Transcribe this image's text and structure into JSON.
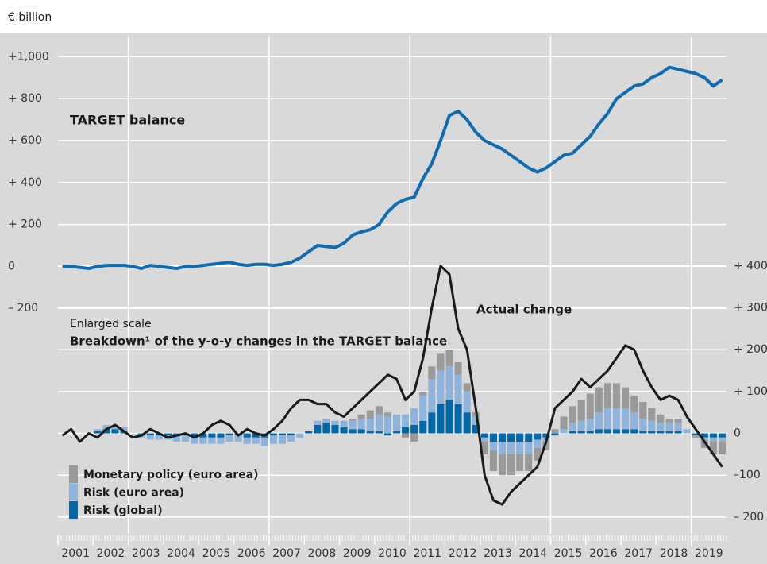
{
  "chart_data": {
    "type": "combo",
    "unit_label": "€ billion",
    "annotations": [
      "Enlarged scale",
      "Breakdown¹ of the y-o-y changes in the TARGET balance"
    ],
    "x": [
      2001.125,
      2001.375,
      2001.625,
      2001.875,
      2002.125,
      2002.375,
      2002.625,
      2002.875,
      2003.125,
      2003.375,
      2003.625,
      2003.875,
      2004.125,
      2004.375,
      2004.625,
      2004.875,
      2005.125,
      2005.375,
      2005.625,
      2005.875,
      2006.125,
      2006.375,
      2006.625,
      2006.875,
      2007.125,
      2007.375,
      2007.625,
      2007.875,
      2008.125,
      2008.375,
      2008.625,
      2008.875,
      2009.125,
      2009.375,
      2009.625,
      2009.875,
      2010.125,
      2010.375,
      2010.625,
      2010.875,
      2011.125,
      2011.375,
      2011.625,
      2011.875,
      2012.125,
      2012.375,
      2012.625,
      2012.875,
      2013.125,
      2013.375,
      2013.625,
      2013.875,
      2014.125,
      2014.375,
      2014.625,
      2014.875,
      2015.125,
      2015.375,
      2015.625,
      2015.875,
      2016.125,
      2016.375,
      2016.625,
      2016.875,
      2017.125,
      2017.375,
      2017.625,
      2017.875,
      2018.125,
      2018.375,
      2018.625,
      2018.875,
      2019.125,
      2019.375,
      2019.625,
      2019.875
    ],
    "xlim": [
      2001,
      2020
    ],
    "xticks": [
      2001,
      2002,
      2003,
      2004,
      2005,
      2006,
      2007,
      2008,
      2009,
      2010,
      2011,
      2012,
      2013,
      2014,
      2015,
      2016,
      2017,
      2018,
      2019
    ],
    "ylim": [
      -1275,
      1100
    ],
    "yticks": [
      {
        "value": 1000,
        "label": "+1,000"
      },
      {
        "value": 800,
        "label": "+ 800"
      },
      {
        "value": 600,
        "label": "+ 600"
      },
      {
        "value": 400,
        "label": "+ 400"
      },
      {
        "value": 200,
        "label": "+ 200"
      },
      0,
      {
        "value": -200,
        "label": "– 200"
      }
    ],
    "y2lim": [
      -240,
      950
    ],
    "y2ticks": [
      {
        "value": 400,
        "label": "+ 400"
      },
      {
        "value": 300,
        "label": "+ 300"
      },
      {
        "value": 200,
        "label": "+ 200"
      },
      {
        "value": 100,
        "label": "+ 100"
      },
      0,
      {
        "value": -100,
        "label": "–100"
      },
      {
        "value": -200,
        "label": "– 200"
      }
    ],
    "grid": true,
    "series": [
      {
        "name": "Monetary policy (euro area)",
        "type": "bar",
        "axis": "y2",
        "color": "#9a9a9a",
        "values": [
          0,
          0,
          0,
          0,
          0,
          0,
          0,
          0,
          0,
          0,
          0,
          0,
          0,
          0,
          0,
          0,
          0,
          0,
          0,
          0,
          0,
          0,
          0,
          0,
          0,
          0,
          0,
          0,
          0,
          0,
          0,
          0,
          0,
          5,
          10,
          20,
          20,
          10,
          0,
          -10,
          -20,
          10,
          30,
          40,
          40,
          30,
          20,
          10,
          -30,
          -50,
          -50,
          -50,
          -40,
          -40,
          -30,
          -20,
          10,
          30,
          40,
          50,
          60,
          60,
          60,
          60,
          50,
          40,
          40,
          30,
          20,
          10,
          10,
          0,
          -5,
          -20,
          -30,
          -30
        ]
      },
      {
        "name": "Risk (euro area)",
        "type": "bar",
        "axis": "y2",
        "color": "#8fb4dc",
        "values": [
          0,
          0,
          0,
          0,
          5,
          10,
          10,
          10,
          0,
          -5,
          -10,
          -10,
          -10,
          -15,
          -15,
          -15,
          -15,
          -15,
          -15,
          -15,
          -15,
          -15,
          -15,
          -20,
          -20,
          -20,
          -15,
          -10,
          0,
          10,
          10,
          10,
          15,
          20,
          25,
          30,
          40,
          40,
          40,
          30,
          40,
          60,
          80,
          80,
          80,
          70,
          50,
          20,
          -10,
          -20,
          -30,
          -30,
          -30,
          -30,
          -20,
          -10,
          0,
          10,
          20,
          25,
          30,
          40,
          50,
          50,
          50,
          40,
          30,
          25,
          20,
          20,
          20,
          10,
          0,
          -5,
          -10,
          -10
        ]
      },
      {
        "name": "Risk (global)",
        "type": "bar",
        "axis": "y2",
        "color": "#0068a8",
        "values": [
          0,
          0,
          0,
          0,
          5,
          10,
          10,
          5,
          0,
          -5,
          -5,
          -5,
          -5,
          -5,
          -5,
          -10,
          -10,
          -10,
          -10,
          -5,
          -5,
          -10,
          -10,
          -10,
          -5,
          -5,
          -5,
          0,
          5,
          20,
          25,
          20,
          15,
          10,
          10,
          5,
          5,
          -5,
          5,
          15,
          20,
          30,
          50,
          70,
          80,
          70,
          50,
          20,
          -10,
          -20,
          -20,
          -20,
          -20,
          -20,
          -15,
          -10,
          -5,
          0,
          5,
          5,
          5,
          10,
          10,
          10,
          10,
          10,
          5,
          5,
          5,
          5,
          5,
          0,
          -5,
          -10,
          -10,
          -10
        ]
      },
      {
        "name": "TARGET balance",
        "type": "line",
        "axis": "y",
        "color": "#0f6cb0",
        "values": [
          0,
          0,
          -5,
          -10,
          0,
          5,
          5,
          5,
          0,
          -10,
          5,
          0,
          -5,
          -10,
          0,
          0,
          5,
          10,
          15,
          20,
          10,
          5,
          10,
          10,
          5,
          10,
          20,
          40,
          70,
          100,
          95,
          90,
          110,
          150,
          165,
          175,
          200,
          260,
          300,
          320,
          330,
          420,
          490,
          600,
          720,
          740,
          700,
          640,
          600,
          580,
          560,
          530,
          500,
          470,
          450,
          470,
          500,
          530,
          540,
          580,
          620,
          680,
          730,
          800,
          830,
          860,
          870,
          900,
          920,
          950,
          940,
          930,
          920,
          900,
          860,
          890
        ]
      },
      {
        "name": "Actual change",
        "type": "line",
        "axis": "y2",
        "color": "#1a1a1a",
        "values": [
          -5,
          10,
          -20,
          0,
          -10,
          10,
          20,
          5,
          -10,
          -5,
          10,
          0,
          -10,
          -5,
          0,
          -10,
          0,
          20,
          30,
          20,
          -5,
          10,
          0,
          -5,
          10,
          30,
          60,
          80,
          80,
          70,
          70,
          50,
          40,
          60,
          80,
          100,
          120,
          140,
          130,
          80,
          100,
          180,
          300,
          400,
          380,
          250,
          200,
          60,
          -100,
          -160,
          -170,
          -140,
          -120,
          -100,
          -80,
          -20,
          60,
          80,
          100,
          130,
          110,
          130,
          150,
          180,
          210,
          200,
          150,
          110,
          80,
          90,
          80,
          40,
          10,
          -20,
          -50,
          -80
        ]
      }
    ]
  }
}
